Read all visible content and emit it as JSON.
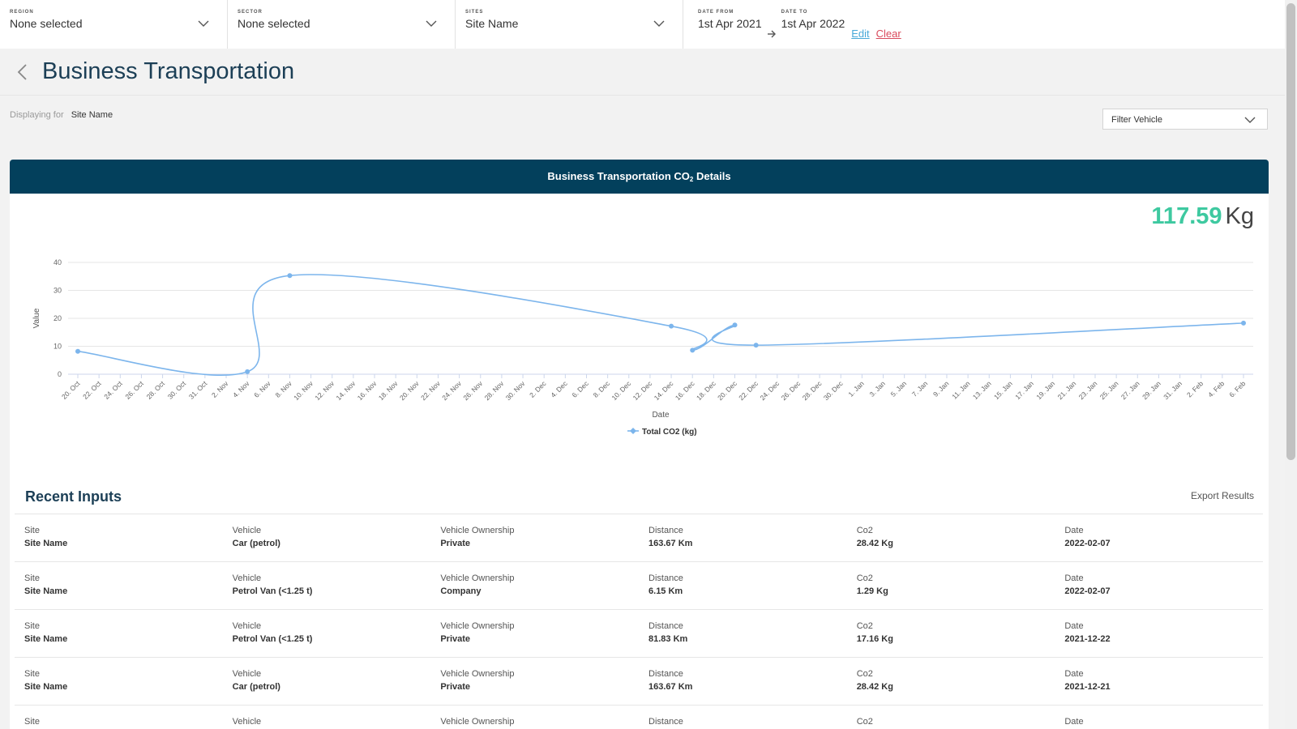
{
  "filters": {
    "region": {
      "label": "REGION",
      "value": "None selected"
    },
    "sector": {
      "label": "SECTOR",
      "value": "None selected"
    },
    "sites": {
      "label": "SITES",
      "value": "Site Name"
    },
    "date_from": {
      "label": "DATE FROM",
      "value": "1st Apr 2021"
    },
    "date_to": {
      "label": "DATE TO",
      "value": "1st Apr 2022"
    },
    "edit_label": "Edit",
    "clear_label": "Clear"
  },
  "page": {
    "title": "Business Transportation",
    "displaying_label": "Displaying for",
    "displaying_value": "Site Name",
    "vehicle_filter": "Filter Vehicle"
  },
  "card": {
    "title_pre": "Business Transportation CO",
    "title_sub": "2",
    "title_post": " Details",
    "total_value": "117.59",
    "total_unit": "Kg"
  },
  "chart_data": {
    "type": "line",
    "xlabel": "Date",
    "ylabel": "Value",
    "ylim": [
      0,
      40
    ],
    "yticks": [
      0,
      10,
      20,
      30,
      40
    ],
    "grid": true,
    "legend_placement": "bottom-center",
    "xticks": [
      "20. Oct",
      "22. Oct",
      "24. Oct",
      "26. Oct",
      "28. Oct",
      "30. Oct",
      "31. Oct",
      "2. Nov",
      "4. Nov",
      "6. Nov",
      "8. Nov",
      "10. Nov",
      "12. Nov",
      "14. Nov",
      "16. Nov",
      "18. Nov",
      "20. Nov",
      "22. Nov",
      "24. Nov",
      "26. Nov",
      "28. Nov",
      "30. Nov",
      "2. Dec",
      "4. Dec",
      "6. Dec",
      "8. Dec",
      "10. Dec",
      "12. Dec",
      "14. Dec",
      "16. Dec",
      "18. Dec",
      "20. Dec",
      "22. Dec",
      "24. Dec",
      "26. Dec",
      "28. Dec",
      "30. Dec",
      "1. Jan",
      "3. Jan",
      "5. Jan",
      "7. Jan",
      "9. Jan",
      "11. Jan",
      "13. Jan",
      "15. Jan",
      "17. Jan",
      "19. Jan",
      "21. Jan",
      "23. Jan",
      "25. Jan",
      "27. Jan",
      "29. Jan",
      "31. Jan",
      "2. Feb",
      "4. Feb",
      "6. Feb"
    ],
    "series": [
      {
        "name": "Total CO2 (kg)",
        "color": "#7cb5ec",
        "points": [
          {
            "x": "20. Oct",
            "y": 8.2
          },
          {
            "x": "4. Nov",
            "y": 0.9
          },
          {
            "x": "8. Nov",
            "y": 35.3
          },
          {
            "x": "14. Dec",
            "y": 17.2
          },
          {
            "x": "16. Dec",
            "y": 8.6
          },
          {
            "x": "20. Dec",
            "y": 17.6
          },
          {
            "x": "22. Dec",
            "y": 10.4
          },
          {
            "x": "6. Feb",
            "y": 18.3
          }
        ]
      }
    ]
  },
  "recent": {
    "title": "Recent Inputs",
    "export_label": "Export Results",
    "headers": {
      "site": "Site",
      "vehicle": "Vehicle",
      "ownership": "Vehicle Ownership",
      "distance": "Distance",
      "co2": "Co2",
      "date": "Date"
    },
    "rows": [
      {
        "site": "Site Name",
        "vehicle": "Car (petrol)",
        "ownership": "Private",
        "distance": "163.67 Km",
        "co2": "28.42 Kg",
        "date": "2022-02-07"
      },
      {
        "site": "Site Name",
        "vehicle": "Petrol Van (<1.25 t)",
        "ownership": "Company",
        "distance": "6.15 Km",
        "co2": "1.29 Kg",
        "date": "2022-02-07"
      },
      {
        "site": "Site Name",
        "vehicle": "Petrol Van (<1.25 t)",
        "ownership": "Private",
        "distance": "81.83 Km",
        "co2": "17.16 Kg",
        "date": "2021-12-22"
      },
      {
        "site": "Site Name",
        "vehicle": "Car (petrol)",
        "ownership": "Private",
        "distance": "163.67 Km",
        "co2": "28.42 Kg",
        "date": "2021-12-21"
      },
      {
        "site": "",
        "vehicle": "",
        "ownership": "",
        "distance": "",
        "co2": "",
        "date": ""
      }
    ]
  }
}
